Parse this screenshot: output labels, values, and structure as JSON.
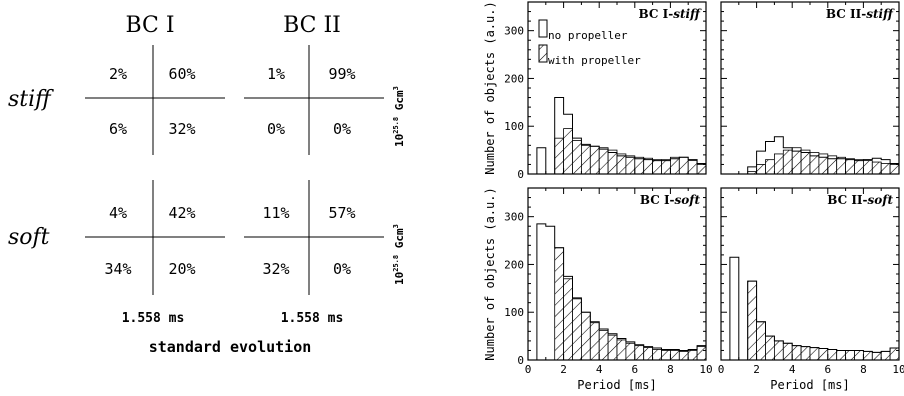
{
  "grid_panel": {
    "col_titles": [
      "BC I",
      "BC II"
    ],
    "row_titles": [
      "stiff",
      "soft"
    ],
    "units": [
      "10",
      "25.8",
      " Gcm",
      "3"
    ],
    "periods": [
      "1.558 ms",
      "1.558 ms"
    ],
    "caption": "standard evolution",
    "cells": {
      "stiff_bc1": [
        "2%",
        "60%",
        "6%",
        "32%"
      ],
      "stiff_bc2": [
        "1%",
        "99%",
        "0%",
        "0%"
      ],
      "soft_bc1": [
        "4%",
        "42%",
        "34%",
        "20%"
      ],
      "soft_bc2": [
        "11%",
        "57%",
        "32%",
        "0%"
      ]
    }
  },
  "legend": {
    "no_propeller": "no propeller",
    "with_propeller": "with propeller"
  },
  "chart_data": [
    {
      "type": "bar",
      "id": "bc1-stiff",
      "title": [
        "BC I-",
        "stiff"
      ],
      "xlabel": "",
      "ylabel": "Number of objects (a.u.)",
      "xlim": [
        0,
        10
      ],
      "ylim": [
        0,
        360
      ],
      "bin_width": 0.5,
      "x_ticks": [],
      "y_ticks": [
        "0",
        "100",
        "200",
        "300"
      ],
      "series": [
        {
          "name": "no propeller",
          "values": [
            0,
            55,
            0,
            160,
            125,
            75,
            62,
            58,
            52,
            45,
            38,
            35,
            32,
            30,
            28,
            28,
            32,
            35,
            30,
            22
          ]
        },
        {
          "name": "with propeller",
          "values": [
            0,
            0,
            0,
            75,
            95,
            70,
            60,
            58,
            55,
            50,
            42,
            38,
            35,
            33,
            30,
            30,
            35,
            35,
            28,
            20
          ]
        }
      ]
    },
    {
      "type": "bar",
      "id": "bc2-stiff",
      "title": [
        "BC II-",
        "stiff"
      ],
      "xlabel": "",
      "ylabel": "",
      "xlim": [
        0,
        10
      ],
      "ylim": [
        0,
        360
      ],
      "bin_width": 0.5,
      "x_ticks": [],
      "y_ticks": [],
      "series": [
        {
          "name": "no propeller",
          "values": [
            0,
            0,
            0,
            15,
            48,
            68,
            78,
            55,
            48,
            45,
            38,
            35,
            32,
            32,
            30,
            28,
            30,
            33,
            30,
            22
          ]
        },
        {
          "name": "with propeller",
          "values": [
            0,
            0,
            0,
            5,
            20,
            30,
            42,
            50,
            55,
            50,
            45,
            42,
            38,
            35,
            32,
            30,
            28,
            25,
            22,
            20
          ]
        }
      ]
    },
    {
      "type": "bar",
      "id": "bc1-soft",
      "title": [
        "BC I-",
        "soft"
      ],
      "xlabel": "Period [ms]",
      "ylabel": "Number of objects (a.u.)",
      "xlim": [
        0,
        10
      ],
      "ylim": [
        0,
        360
      ],
      "bin_width": 0.5,
      "x_ticks": [
        "0",
        "2",
        "4",
        "6",
        "8",
        "10"
      ],
      "y_ticks": [
        "0",
        "100",
        "200",
        "300"
      ],
      "series": [
        {
          "name": "no propeller",
          "values": [
            0,
            285,
            280,
            235,
            175,
            130,
            100,
            80,
            65,
            55,
            45,
            38,
            32,
            28,
            25,
            22,
            22,
            20,
            22,
            30
          ]
        },
        {
          "name": "with propeller",
          "values": [
            0,
            0,
            0,
            235,
            170,
            128,
            100,
            78,
            62,
            52,
            42,
            35,
            30,
            26,
            22,
            20,
            20,
            18,
            20,
            28
          ]
        }
      ]
    },
    {
      "type": "bar",
      "id": "bc2-soft",
      "title": [
        "BC II-",
        "soft"
      ],
      "xlabel": "Period [ms]",
      "ylabel": "",
      "xlim": [
        0,
        10
      ],
      "ylim": [
        0,
        360
      ],
      "bin_width": 0.5,
      "x_ticks": [
        "0",
        "2",
        "4",
        "6",
        "8",
        "10"
      ],
      "y_ticks": [],
      "series": [
        {
          "name": "no propeller",
          "values": [
            0,
            215,
            0,
            165,
            80,
            50,
            40,
            35,
            30,
            28,
            26,
            24,
            22,
            20,
            20,
            20,
            18,
            16,
            18,
            25
          ]
        },
        {
          "name": "with propeller",
          "values": [
            0,
            0,
            0,
            165,
            80,
            50,
            40,
            35,
            30,
            28,
            26,
            24,
            22,
            20,
            20,
            20,
            18,
            16,
            18,
            25
          ]
        }
      ]
    }
  ]
}
